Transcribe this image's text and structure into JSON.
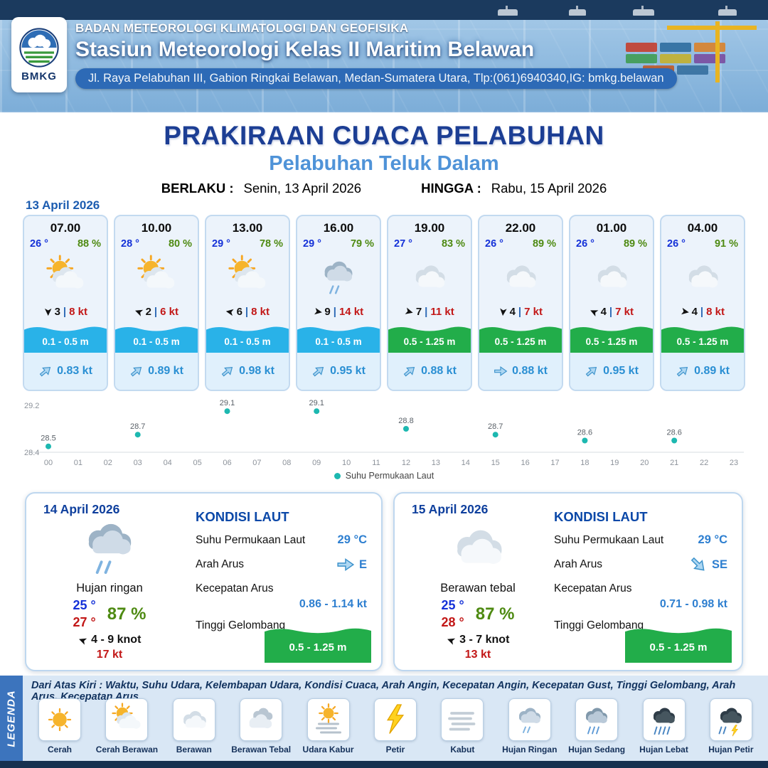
{
  "header": {
    "logo_text": "BMKG",
    "org": "BADAN METEOROLOGI KLIMATOLOGI DAN GEOFISIKA",
    "station": "Stasiun Meteorologi Kelas II Maritim Belawan",
    "address": "Jl. Raya Pelabuhan III, Gabion Ringkai Belawan, Medan-Sumatera Utara, Tlp:(061)6940340,IG: bmkg.belawan"
  },
  "title": {
    "main": "PRAKIRAAN CUACA PELABUHAN",
    "subtitle": "Pelabuhan Teluk Dalam",
    "berlaku_label": "BERLAKU :",
    "berlaku_value": "Senin, 13 April 2026",
    "hingga_label": "HINGGA :",
    "hingga_value": "Rabu, 15 April 2026"
  },
  "day1": {
    "date": "13 April 2026",
    "cards": [
      {
        "time": "07.00",
        "temp": "26 °",
        "humidity": "88 %",
        "icon": "cerah-berawan",
        "wind_rot": 90,
        "wind_speed": "3",
        "gust": "8 kt",
        "wave": "0.1 - 0.5 m",
        "wave_color": "blue",
        "current_rot": -40,
        "current_speed": "0.83 kt"
      },
      {
        "time": "10.00",
        "temp": "28 °",
        "humidity": "80 %",
        "icon": "cerah-berawan",
        "wind_rot": 200,
        "wind_speed": "2",
        "gust": "6 kt",
        "wave": "0.1 - 0.5 m",
        "wave_color": "blue",
        "current_rot": -40,
        "current_speed": "0.89 kt"
      },
      {
        "time": "13.00",
        "temp": "29 °",
        "humidity": "78 %",
        "icon": "cerah-berawan",
        "wind_rot": 190,
        "wind_speed": "6",
        "gust": "8 kt",
        "wave": "0.1 - 0.5 m",
        "wave_color": "blue",
        "current_rot": -40,
        "current_speed": "0.98 kt"
      },
      {
        "time": "16.00",
        "temp": "29 °",
        "humidity": "79 %",
        "icon": "hujan-ringan",
        "wind_rot": 10,
        "wind_speed": "9",
        "gust": "14 kt",
        "wave": "0.1 - 0.5 m",
        "wave_color": "blue",
        "current_rot": -40,
        "current_speed": "0.95 kt"
      },
      {
        "time": "19.00",
        "temp": "27 °",
        "humidity": "83 %",
        "icon": "berawan",
        "wind_rot": 15,
        "wind_speed": "7",
        "gust": "11 kt",
        "wave": "0.5 - 1.25 m",
        "wave_color": "green",
        "current_rot": -40,
        "current_speed": "0.88 kt"
      },
      {
        "time": "22.00",
        "temp": "26 °",
        "humidity": "89 %",
        "icon": "berawan",
        "wind_rot": 95,
        "wind_speed": "4",
        "gust": "7 kt",
        "wave": "0.5 - 1.25 m",
        "wave_color": "green",
        "current_rot": 0,
        "current_speed": "0.88 kt"
      },
      {
        "time": "01.00",
        "temp": "26 °",
        "humidity": "89 %",
        "icon": "berawan",
        "wind_rot": 205,
        "wind_speed": "4",
        "gust": "7 kt",
        "wave": "0.5 - 1.25 m",
        "wave_color": "green",
        "current_rot": -40,
        "current_speed": "0.95 kt"
      },
      {
        "time": "04.00",
        "temp": "26 °",
        "humidity": "91 %",
        "icon": "berawan",
        "wind_rot": 10,
        "wind_speed": "4",
        "gust": "8 kt",
        "wave": "0.5 - 1.25 m",
        "wave_color": "green",
        "current_rot": -40,
        "current_speed": "0.89 kt"
      }
    ]
  },
  "chart_data": {
    "type": "scatter",
    "title": "",
    "legend": "Suhu Permukaan Laut",
    "dot_color": "#1db8b0",
    "ylim": [
      28.4,
      29.2
    ],
    "x_ticks": [
      "00",
      "01",
      "02",
      "03",
      "04",
      "05",
      "06",
      "07",
      "08",
      "09",
      "10",
      "11",
      "12",
      "13",
      "14",
      "15",
      "16",
      "17",
      "18",
      "19",
      "20",
      "21",
      "22",
      "23"
    ],
    "points": [
      {
        "x": 0,
        "y": 28.5
      },
      {
        "x": 3,
        "y": 28.7
      },
      {
        "x": 6,
        "y": 29.1
      },
      {
        "x": 9,
        "y": 29.1
      },
      {
        "x": 12,
        "y": 28.8
      },
      {
        "x": 15,
        "y": 28.7
      },
      {
        "x": 18,
        "y": 28.6
      },
      {
        "x": 21,
        "y": 28.6
      }
    ]
  },
  "day2": {
    "date": "14 April 2026",
    "icon": "hujan-ringan",
    "condition": "Hujan ringan",
    "temp_min": "25 °",
    "temp_max": "27 °",
    "humidity": "87 %",
    "wind_rot": 200,
    "wind": "4 - 9 knot",
    "gust": "17 kt",
    "sea": {
      "heading": "KONDISI LAUT",
      "sst_label": "Suhu Permukaan Laut",
      "sst_value": "29 °C",
      "dir_label": "Arah Arus",
      "dir_value": "E",
      "dir_rot": 0,
      "speed_label": "Kecepatan Arus",
      "speed_value": "0.86 - 1.14 kt",
      "wave_label": "Tinggi Gelombang",
      "wave_value": "0.5 - 1.25 m"
    }
  },
  "day3": {
    "date": "15 April 2026",
    "icon": "berawan",
    "condition": "Berawan tebal",
    "temp_min": "25 °",
    "temp_max": "28 °",
    "humidity": "87 %",
    "wind_rot": 200,
    "wind": "3 - 7 knot",
    "gust": "13 kt",
    "sea": {
      "heading": "KONDISI LAUT",
      "sst_label": "Suhu Permukaan Laut",
      "sst_value": "29 °C",
      "dir_label": "Arah Arus",
      "dir_value": "SE",
      "dir_rot": 45,
      "speed_label": "Kecepatan Arus",
      "speed_value": "0.71 - 0.98 kt",
      "wave_label": "Tinggi Gelombang",
      "wave_value": "0.5 - 1.25 m"
    }
  },
  "legend": {
    "title": "LEGENDA",
    "note": "Dari Atas Kiri : Waktu, Suhu Udara, Kelembapan Udara, Kondisi Cuaca, Arah Angin, Kecepatan Angin, Kecepatan Gust, Tinggi Gelombang, Arah Arus, Kecepatan Arus",
    "items": [
      {
        "label": "Cerah",
        "icon": "cerah"
      },
      {
        "label": "Cerah Berawan",
        "icon": "cerah-berawan"
      },
      {
        "label": "Berawan",
        "icon": "berawan"
      },
      {
        "label": "Berawan Tebal",
        "icon": "berawan-tebal"
      },
      {
        "label": "Udara Kabur",
        "icon": "udara-kabur"
      },
      {
        "label": "Petir",
        "icon": "petir"
      },
      {
        "label": "Kabut",
        "icon": "kabut"
      },
      {
        "label": "Hujan Ringan",
        "icon": "hujan-ringan"
      },
      {
        "label": "Hujan Sedang",
        "icon": "hujan-sedang"
      },
      {
        "label": "Hujan Lebat",
        "icon": "hujan-lebat"
      },
      {
        "label": "Hujan Petir",
        "icon": "hujan-petir"
      }
    ]
  },
  "colors": {
    "title_blue": "#1c3e94",
    "subtitle_blue": "#4f93d8",
    "temp_blue": "#1431d8",
    "humidity_green": "#4e8a12",
    "gust_red": "#c21717",
    "wave_blue": "#29b2e8",
    "wave_green": "#22ad4a"
  }
}
